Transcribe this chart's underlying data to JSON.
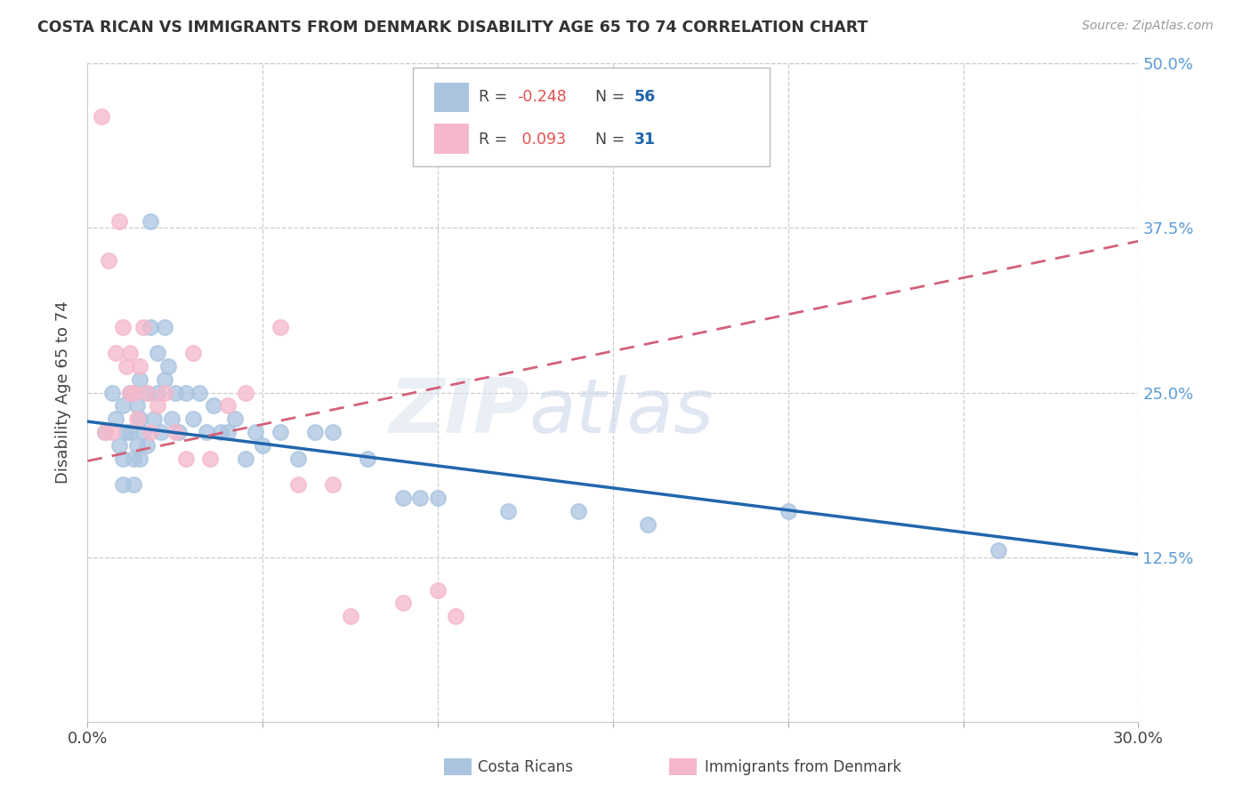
{
  "title": "COSTA RICAN VS IMMIGRANTS FROM DENMARK DISABILITY AGE 65 TO 74 CORRELATION CHART",
  "source": "Source: ZipAtlas.com",
  "ylabel": "Disability Age 65 to 74",
  "x_min": 0.0,
  "x_max": 0.3,
  "y_min": 0.0,
  "y_max": 0.5,
  "x_ticks": [
    0.0,
    0.05,
    0.1,
    0.15,
    0.2,
    0.25,
    0.3
  ],
  "x_tick_labels": [
    "0.0%",
    "",
    "",
    "",
    "",
    "",
    "30.0%"
  ],
  "y_tick_labels_right": [
    "12.5%",
    "25.0%",
    "37.5%",
    "50.0%"
  ],
  "y_ticks_right": [
    0.125,
    0.25,
    0.375,
    0.5
  ],
  "blue_R": -0.248,
  "blue_N": 56,
  "pink_R": 0.093,
  "pink_N": 31,
  "blue_color": "#aac4e0",
  "pink_color": "#f5b8cb",
  "blue_line_color": "#2166ac",
  "pink_line_color": "#d4607a",
  "legend_blue_label": "Costa Ricans",
  "legend_pink_label": "Immigrants from Denmark",
  "blue_x": [
    0.005,
    0.007,
    0.008,
    0.009,
    0.01,
    0.01,
    0.01,
    0.011,
    0.012,
    0.012,
    0.013,
    0.013,
    0.014,
    0.014,
    0.015,
    0.015,
    0.015,
    0.016,
    0.017,
    0.017,
    0.018,
    0.018,
    0.019,
    0.02,
    0.02,
    0.021,
    0.022,
    0.022,
    0.023,
    0.024,
    0.025,
    0.026,
    0.028,
    0.03,
    0.032,
    0.034,
    0.036,
    0.038,
    0.04,
    0.042,
    0.045,
    0.048,
    0.05,
    0.055,
    0.06,
    0.065,
    0.07,
    0.08,
    0.09,
    0.095,
    0.1,
    0.12,
    0.14,
    0.16,
    0.2,
    0.26
  ],
  "blue_y": [
    0.22,
    0.25,
    0.23,
    0.21,
    0.24,
    0.2,
    0.18,
    0.22,
    0.25,
    0.22,
    0.2,
    0.18,
    0.24,
    0.21,
    0.26,
    0.23,
    0.2,
    0.22,
    0.25,
    0.21,
    0.38,
    0.3,
    0.23,
    0.28,
    0.25,
    0.22,
    0.3,
    0.26,
    0.27,
    0.23,
    0.25,
    0.22,
    0.25,
    0.23,
    0.25,
    0.22,
    0.24,
    0.22,
    0.22,
    0.23,
    0.2,
    0.22,
    0.21,
    0.22,
    0.2,
    0.22,
    0.22,
    0.2,
    0.17,
    0.17,
    0.17,
    0.16,
    0.16,
    0.15,
    0.16,
    0.13
  ],
  "pink_x": [
    0.004,
    0.005,
    0.006,
    0.007,
    0.008,
    0.009,
    0.01,
    0.011,
    0.012,
    0.012,
    0.013,
    0.014,
    0.015,
    0.016,
    0.017,
    0.018,
    0.02,
    0.022,
    0.025,
    0.028,
    0.03,
    0.035,
    0.04,
    0.045,
    0.055,
    0.06,
    0.07,
    0.075,
    0.09,
    0.1,
    0.105
  ],
  "pink_y": [
    0.46,
    0.22,
    0.35,
    0.22,
    0.28,
    0.38,
    0.3,
    0.27,
    0.28,
    0.25,
    0.25,
    0.23,
    0.27,
    0.3,
    0.25,
    0.22,
    0.24,
    0.25,
    0.22,
    0.2,
    0.28,
    0.2,
    0.24,
    0.25,
    0.3,
    0.18,
    0.18,
    0.08,
    0.09,
    0.1,
    0.08
  ],
  "blue_line_x0": 0.0,
  "blue_line_y0": 0.228,
  "blue_line_x1": 0.3,
  "blue_line_y1": 0.127,
  "pink_line_x0": 0.0,
  "pink_line_y0": 0.198,
  "pink_line_x1": 0.3,
  "pink_line_y1": 0.365
}
